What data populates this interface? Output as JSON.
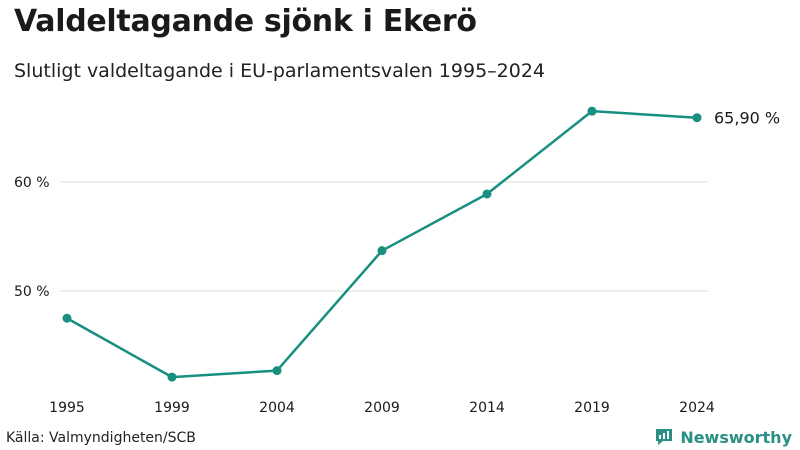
{
  "title": "Valdeltagande sjönk i Ekerö",
  "subtitle": "Slutligt valdeltagande i EU-parlamentsvalen 1995–2024",
  "source": "Källa: Valmyndigheten/SCB",
  "brand": {
    "name": "Newsworthy",
    "icon": "newsworthy-logo-icon",
    "color": "#2a8f85"
  },
  "colors": {
    "line": "#198f80",
    "grid": "#dddddd"
  },
  "chart_data": {
    "type": "line",
    "x": [
      "1995",
      "1999",
      "2004",
      "2009",
      "2014",
      "2019",
      "2024"
    ],
    "series": [
      {
        "values": [
          47.5,
          42.1,
          42.7,
          53.7,
          58.9,
          66.5,
          65.9
        ]
      }
    ],
    "yticks": [
      50,
      60
    ],
    "ytick_labels": [
      "50 %",
      "60 %"
    ],
    "ylim": [
      40,
      70
    ],
    "end_label": "65,90 %",
    "grid": true
  }
}
